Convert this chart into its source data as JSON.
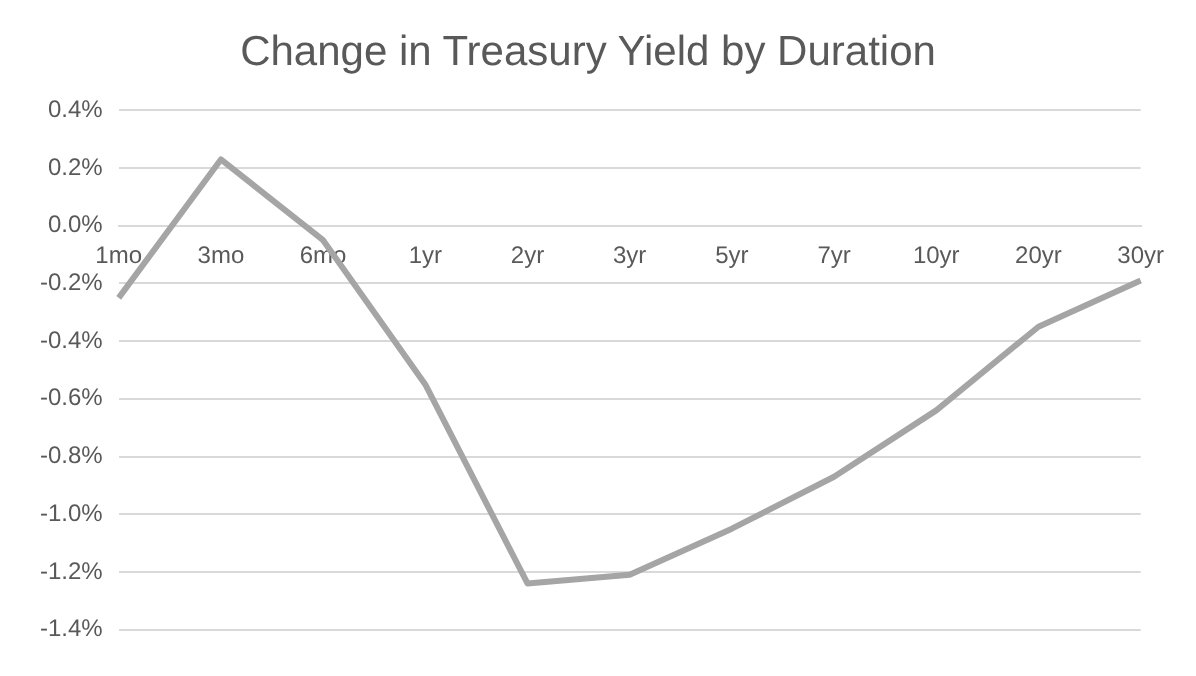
{
  "chart_data": {
    "type": "line",
    "title": "Change in Treasury Yield by Duration",
    "categories": [
      "1mo",
      "3mo",
      "6mo",
      "1yr",
      "2yr",
      "3yr",
      "5yr",
      "7yr",
      "10yr",
      "20yr",
      "30yr"
    ],
    "series": [
      {
        "color": "#a5a5a5",
        "values": [
          -0.25,
          0.23,
          -0.05,
          -0.55,
          -1.24,
          -1.21,
          -1.05,
          -0.87,
          -0.64,
          -0.35,
          -0.19
        ]
      }
    ],
    "ylim": [
      -1.4,
      0.4
    ],
    "yticks": [
      {
        "value": 0.4,
        "label": "0.4%"
      },
      {
        "value": 0.2,
        "label": "0.2%"
      },
      {
        "value": 0,
        "label": "0.0%"
      },
      {
        "value": -0.2,
        "label": "-0.2%"
      },
      {
        "value": -0.4,
        "label": "-0.4%"
      },
      {
        "value": -0.6,
        "label": "-0.6%"
      },
      {
        "value": -0.8,
        "label": "-0.8%"
      },
      {
        "value": -1,
        "label": "-1.0%"
      },
      {
        "value": -1.2,
        "label": "-1.2%"
      },
      {
        "value": -1.4,
        "label": "-1.4%"
      }
    ],
    "grid": "y",
    "legend": false,
    "marker": "none",
    "line_style": "solid"
  }
}
